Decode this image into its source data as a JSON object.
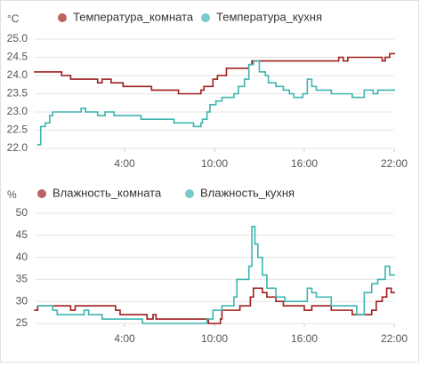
{
  "chart_data": [
    {
      "type": "line",
      "step": true,
      "ylabel": "°C",
      "grid": true,
      "xlim": [
        -2,
        22
      ],
      "xticks": [
        {
          "value": 4,
          "label": "4:00"
        },
        {
          "value": 10,
          "label": "10:00"
        },
        {
          "value": 16,
          "label": "16:00"
        },
        {
          "value": 22,
          "label": "22:00"
        }
      ],
      "ylim": [
        22,
        25
      ],
      "yticks": [
        {
          "value": 22,
          "label": "22.0"
        },
        {
          "value": 22.5,
          "label": "22.5"
        },
        {
          "value": 23,
          "label": "23.0"
        },
        {
          "value": 23.5,
          "label": "23.5"
        },
        {
          "value": 24,
          "label": "24.0"
        },
        {
          "value": 24.5,
          "label": "24.5"
        },
        {
          "value": 25,
          "label": "25.0"
        }
      ],
      "series": [
        {
          "name": "Температура_комната",
          "color": "#9e1f1f",
          "x": [
            -2.0,
            -0.2,
            0.4,
            2.2,
            2.5,
            3.1,
            3.9,
            5.8,
            7.6,
            9.1,
            9.3,
            9.9,
            10.2,
            10.8,
            12.3,
            12.5,
            18.3,
            18.6,
            18.9,
            21.2,
            21.4,
            21.7,
            22.0
          ],
          "values": [
            24.1,
            24.0,
            23.9,
            23.8,
            23.9,
            23.8,
            23.7,
            23.6,
            23.5,
            23.6,
            23.7,
            23.9,
            24.0,
            24.2,
            24.3,
            24.4,
            24.5,
            24.4,
            24.5,
            24.4,
            24.5,
            24.6,
            24.6
          ]
        },
        {
          "name": "Температура_кухня",
          "color": "#3db5b0",
          "x": [
            -1.8,
            -1.6,
            -1.3,
            -1.0,
            -0.8,
            1.1,
            1.4,
            2.2,
            2.7,
            3.3,
            5.1,
            7.3,
            8.6,
            9.1,
            9.2,
            9.5,
            9.7,
            10.1,
            10.5,
            11.3,
            11.6,
            12.0,
            12.3,
            12.6,
            13.0,
            13.4,
            13.6,
            14.1,
            14.6,
            15.0,
            15.3,
            15.9,
            16.2,
            16.5,
            16.8,
            17.8,
            19.2,
            20.0,
            20.6,
            20.9,
            22.0
          ],
          "values": [
            22.1,
            22.6,
            22.7,
            22.9,
            23.0,
            23.1,
            23.0,
            22.9,
            23.0,
            22.9,
            22.8,
            22.7,
            22.6,
            22.7,
            22.8,
            23.0,
            23.2,
            23.3,
            23.4,
            23.5,
            23.7,
            23.9,
            24.3,
            24.4,
            24.1,
            24.0,
            23.8,
            23.7,
            23.6,
            23.5,
            23.4,
            23.5,
            23.9,
            23.7,
            23.6,
            23.5,
            23.4,
            23.6,
            23.5,
            23.6,
            23.6
          ]
        }
      ]
    },
    {
      "type": "line",
      "step": true,
      "ylabel": "%",
      "grid": true,
      "xlim": [
        -2,
        22
      ],
      "xticks": [
        {
          "value": 4,
          "label": "4:00"
        },
        {
          "value": 10,
          "label": "10:00"
        },
        {
          "value": 16,
          "label": "16:00"
        },
        {
          "value": 22,
          "label": "22:00"
        }
      ],
      "ylim": [
        25,
        50
      ],
      "yticks": [
        25,
        30,
        35,
        40,
        45,
        50
      ],
      "series": [
        {
          "name": "Влажность_комната",
          "color": "#9e1f1f",
          "x": [
            -2.0,
            -1.8,
            0.4,
            0.7,
            3.4,
            3.7,
            5.5,
            5.9,
            6.1,
            9.6,
            10.4,
            10.5,
            11.7,
            12.4,
            12.6,
            13.2,
            13.5,
            14.1,
            14.6,
            16.0,
            16.5,
            17.8,
            19.2,
            20.5,
            20.8,
            21.2,
            21.5,
            21.8,
            22.0
          ],
          "values": [
            28,
            29,
            28,
            29,
            28,
            27,
            26,
            27,
            26,
            25,
            26,
            28,
            29,
            31,
            33,
            32,
            31,
            30,
            29,
            28,
            29,
            28,
            27,
            28,
            30,
            31,
            33,
            32,
            32
          ]
        },
        {
          "name": "Влажность_кухня",
          "color": "#3db5b0",
          "x": [
            -1.8,
            -0.8,
            -0.5,
            1.3,
            1.6,
            2.5,
            5.2,
            9.5,
            9.9,
            10.5,
            11.3,
            11.5,
            12.3,
            12.5,
            12.7,
            12.9,
            13.2,
            13.5,
            14.1,
            14.7,
            16.2,
            16.5,
            16.8,
            17.8,
            19.5,
            20.0,
            20.5,
            20.9,
            21.4,
            21.7,
            22.0
          ],
          "values": [
            29,
            28,
            27,
            28,
            27,
            26,
            25,
            26,
            28,
            29,
            31,
            35,
            38,
            47,
            43,
            40,
            36,
            33,
            31,
            30,
            33,
            32,
            31,
            29,
            27,
            32,
            34,
            35,
            38,
            36,
            36
          ]
        }
      ]
    }
  ]
}
